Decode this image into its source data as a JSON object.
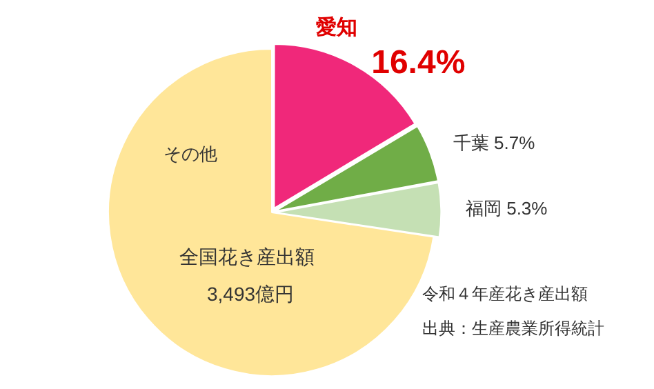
{
  "chart_data": {
    "type": "pie",
    "categories": [
      "愛知",
      "千葉",
      "福岡",
      "その他"
    ],
    "values": [
      16.4,
      5.7,
      5.3,
      72.6
    ],
    "colors": [
      "#f0287a",
      "#70ad47",
      "#c5e0b4",
      "#ffe699"
    ],
    "value_labels": [
      "16.4%",
      "5.7%",
      "5.3%",
      null
    ],
    "legend": false,
    "annotations": [
      "全国花き産出額",
      "3,493億円",
      "令和４年産花き産出額",
      "出典：生産農業所得統計"
    ]
  }
}
